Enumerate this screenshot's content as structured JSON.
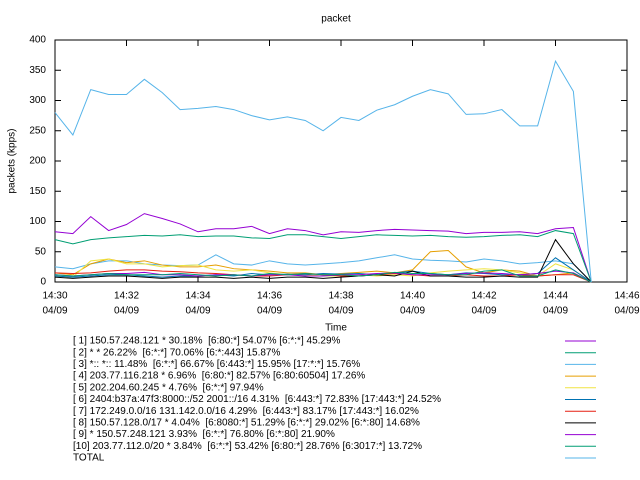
{
  "chart_data": {
    "type": "line",
    "title": "packet",
    "x_label": "Time",
    "y_label": "packets (kpps)",
    "x": [
      0,
      0.5,
      1,
      1.5,
      2,
      2.5,
      3,
      3.5,
      4,
      4.5,
      5,
      5.5,
      6,
      6.5,
      7,
      7.5,
      8,
      8.5,
      9,
      9.5,
      10,
      10.5,
      11,
      11.5,
      12,
      12.5,
      13,
      13.5,
      14,
      14.5,
      15
    ],
    "xlim": [
      0,
      16
    ],
    "xticks": [
      {
        "value": 0,
        "label": "14:30",
        "sublabel": "04/09"
      },
      {
        "value": 2,
        "label": "14:32",
        "sublabel": "04/09"
      },
      {
        "value": 4,
        "label": "14:34",
        "sublabel": "04/09"
      },
      {
        "value": 6,
        "label": "14:36",
        "sublabel": "04/09"
      },
      {
        "value": 8,
        "label": "14:38",
        "sublabel": "04/09"
      },
      {
        "value": 10,
        "label": "14:40",
        "sublabel": "04/09"
      },
      {
        "value": 12,
        "label": "14:42",
        "sublabel": "04/09"
      },
      {
        "value": 14,
        "label": "14:44",
        "sublabel": "04/09"
      },
      {
        "value": 16,
        "label": "14:46",
        "sublabel": "04/09"
      }
    ],
    "ylim": [
      0,
      400
    ],
    "yticks": [
      0,
      50,
      100,
      150,
      200,
      250,
      300,
      350,
      400
    ],
    "series": [
      {
        "name": "[ 1] 150.57.248.121 * 30.18%  [6:80:*] 54.07% [6:*:*] 45.29%",
        "color": "#9400d3",
        "values": [
          83,
          80,
          108,
          85,
          95,
          113,
          105,
          96,
          83,
          88,
          88,
          92,
          80,
          88,
          85,
          78,
          83,
          82,
          85,
          87,
          86,
          85,
          84,
          80,
          82,
          82,
          83,
          80,
          88,
          90,
          0
        ]
      },
      {
        "name": "[ 2] * * 26.22%  [6:*:*] 70.06% [6:*:443] 15.87%",
        "color": "#009e73",
        "values": [
          70,
          63,
          70,
          73,
          75,
          77,
          76,
          78,
          75,
          76,
          76,
          73,
          72,
          78,
          78,
          75,
          72,
          75,
          78,
          77,
          76,
          77,
          75,
          74,
          75,
          77,
          78,
          75,
          85,
          80,
          0
        ]
      },
      {
        "name": "[ 3] *:: *:: 11.48%  [6:*:*] 66.67% [6:443:*] 15.95% [17:*:*] 15.76%",
        "color": "#56b4e9",
        "values": [
          25,
          22,
          30,
          35,
          35,
          30,
          28,
          27,
          28,
          45,
          30,
          28,
          35,
          30,
          28,
          30,
          32,
          35,
          40,
          45,
          38,
          36,
          35,
          33,
          38,
          35,
          30,
          32,
          35,
          30,
          0
        ]
      },
      {
        "name": "[ 4] 203.77.116.218 * 6.96%  [6:80:*] 82.57% [6:80:60504] 17.26%",
        "color": "#e69f00",
        "values": [
          15,
          12,
          30,
          38,
          32,
          35,
          28,
          25,
          25,
          28,
          22,
          20,
          18,
          15,
          15,
          12,
          14,
          16,
          18,
          15,
          20,
          50,
          52,
          25,
          15,
          20,
          18,
          10,
          12,
          15,
          0
        ]
      },
      {
        "name": "[ 5] 202.204.60.245 * 4.76%  [6:*:*] 97.94%",
        "color": "#f0e442",
        "values": [
          10,
          8,
          35,
          38,
          30,
          30,
          25,
          27,
          28,
          20,
          18,
          20,
          15,
          12,
          12,
          10,
          10,
          12,
          10,
          12,
          10,
          15,
          18,
          20,
          22,
          20,
          15,
          10,
          30,
          20,
          0
        ]
      },
      {
        "name": "[ 6] 2404:b37a:47f3:8000::/52 2001::/16 4.31%  [6:443:*] 72.83% [17:443:*] 24.52%",
        "color": "#0072b2",
        "values": [
          10,
          8,
          10,
          12,
          12,
          10,
          8,
          10,
          10,
          12,
          10,
          14,
          12,
          13,
          12,
          14,
          13,
          14,
          12,
          15,
          18,
          14,
          12,
          15,
          14,
          12,
          12,
          14,
          40,
          20,
          0
        ]
      },
      {
        "name": "[ 7] 172.249.0.0/16 131.142.0.0/16 4.29%  [6:443:*] 83.17% [17:443:*] 16.02%",
        "color": "#e51e10",
        "values": [
          15,
          14,
          15,
          18,
          20,
          20,
          18,
          17,
          15,
          14,
          12,
          10,
          10,
          12,
          14,
          12,
          10,
          10,
          12,
          14,
          12,
          10,
          10,
          12,
          10,
          10,
          12,
          10,
          12,
          12,
          0
        ]
      },
      {
        "name": "[ 8] 150.57.128.0/17 * 4.04%  [6:8080:*] 51.29% [6:*:*] 29.02% [6:*:80] 14.68%",
        "color": "#000000",
        "values": [
          8,
          6,
          8,
          10,
          10,
          8,
          6,
          8,
          8,
          8,
          6,
          8,
          6,
          8,
          8,
          6,
          8,
          10,
          12,
          10,
          18,
          10,
          10,
          8,
          8,
          10,
          8,
          8,
          70,
          30,
          0
        ]
      },
      {
        "name": "[ 9] * 150.57.248.121 3.93%  [6:*:*] 76.80% [6:*:80] 21.90%",
        "color": "#9400d3",
        "values": [
          12,
          10,
          12,
          14,
          14,
          16,
          12,
          12,
          10,
          12,
          12,
          10,
          12,
          12,
          10,
          10,
          12,
          12,
          14,
          15,
          12,
          12,
          12,
          14,
          15,
          14,
          12,
          14,
          18,
          15,
          0
        ]
      },
      {
        "name": "[10] 203.77.112.0/20 * 3.84%  [6:*:*] 53.42% [6:80:*] 28.76% [6:3017:*] 13.72%",
        "color": "#009e73",
        "values": [
          12,
          10,
          12,
          14,
          12,
          12,
          12,
          14,
          12,
          10,
          12,
          10,
          14,
          12,
          14,
          12,
          12,
          10,
          12,
          16,
          14,
          14,
          12,
          12,
          18,
          20,
          10,
          10,
          20,
          14,
          0
        ]
      },
      {
        "name": "TOTAL",
        "color": "#56b4e9",
        "values": [
          280,
          243,
          318,
          310,
          310,
          335,
          313,
          285,
          287,
          290,
          285,
          275,
          268,
          273,
          267,
          250,
          272,
          267,
          284,
          293,
          307,
          318,
          311,
          277,
          278,
          285,
          258,
          258,
          365,
          315,
          0
        ]
      }
    ]
  }
}
